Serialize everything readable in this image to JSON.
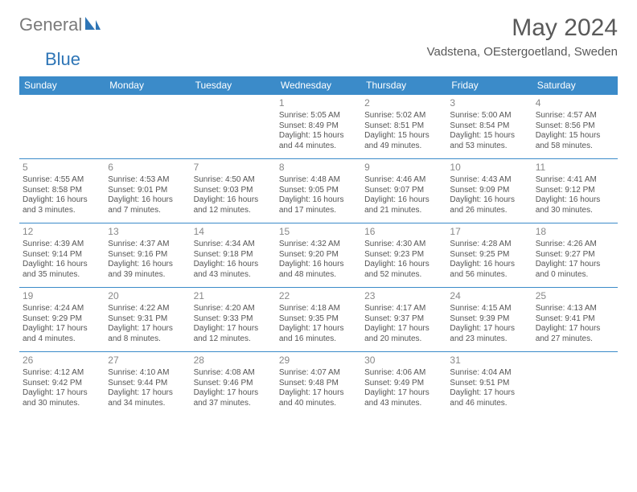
{
  "brand": {
    "part1": "General",
    "part2": "Blue"
  },
  "title": "May 2024",
  "location": "Vadstena, OEstergoetland, Sweden",
  "colors": {
    "header_bg": "#3b8bc9",
    "header_text": "#ffffff",
    "border": "#3b8bc9",
    "title_color": "#595959",
    "body_text": "#555555",
    "daynum_color": "#888888",
    "logo_gray": "#7a7a7a",
    "logo_blue": "#2e75b6"
  },
  "weekdays": [
    "Sunday",
    "Monday",
    "Tuesday",
    "Wednesday",
    "Thursday",
    "Friday",
    "Saturday"
  ],
  "weeks": [
    [
      null,
      null,
      null,
      {
        "n": "1",
        "sr": "5:05 AM",
        "ss": "8:49 PM",
        "dl": "15 hours and 44 minutes."
      },
      {
        "n": "2",
        "sr": "5:02 AM",
        "ss": "8:51 PM",
        "dl": "15 hours and 49 minutes."
      },
      {
        "n": "3",
        "sr": "5:00 AM",
        "ss": "8:54 PM",
        "dl": "15 hours and 53 minutes."
      },
      {
        "n": "4",
        "sr": "4:57 AM",
        "ss": "8:56 PM",
        "dl": "15 hours and 58 minutes."
      }
    ],
    [
      {
        "n": "5",
        "sr": "4:55 AM",
        "ss": "8:58 PM",
        "dl": "16 hours and 3 minutes."
      },
      {
        "n": "6",
        "sr": "4:53 AM",
        "ss": "9:01 PM",
        "dl": "16 hours and 7 minutes."
      },
      {
        "n": "7",
        "sr": "4:50 AM",
        "ss": "9:03 PM",
        "dl": "16 hours and 12 minutes."
      },
      {
        "n": "8",
        "sr": "4:48 AM",
        "ss": "9:05 PM",
        "dl": "16 hours and 17 minutes."
      },
      {
        "n": "9",
        "sr": "4:46 AM",
        "ss": "9:07 PM",
        "dl": "16 hours and 21 minutes."
      },
      {
        "n": "10",
        "sr": "4:43 AM",
        "ss": "9:09 PM",
        "dl": "16 hours and 26 minutes."
      },
      {
        "n": "11",
        "sr": "4:41 AM",
        "ss": "9:12 PM",
        "dl": "16 hours and 30 minutes."
      }
    ],
    [
      {
        "n": "12",
        "sr": "4:39 AM",
        "ss": "9:14 PM",
        "dl": "16 hours and 35 minutes."
      },
      {
        "n": "13",
        "sr": "4:37 AM",
        "ss": "9:16 PM",
        "dl": "16 hours and 39 minutes."
      },
      {
        "n": "14",
        "sr": "4:34 AM",
        "ss": "9:18 PM",
        "dl": "16 hours and 43 minutes."
      },
      {
        "n": "15",
        "sr": "4:32 AM",
        "ss": "9:20 PM",
        "dl": "16 hours and 48 minutes."
      },
      {
        "n": "16",
        "sr": "4:30 AM",
        "ss": "9:23 PM",
        "dl": "16 hours and 52 minutes."
      },
      {
        "n": "17",
        "sr": "4:28 AM",
        "ss": "9:25 PM",
        "dl": "16 hours and 56 minutes."
      },
      {
        "n": "18",
        "sr": "4:26 AM",
        "ss": "9:27 PM",
        "dl": "17 hours and 0 minutes."
      }
    ],
    [
      {
        "n": "19",
        "sr": "4:24 AM",
        "ss": "9:29 PM",
        "dl": "17 hours and 4 minutes."
      },
      {
        "n": "20",
        "sr": "4:22 AM",
        "ss": "9:31 PM",
        "dl": "17 hours and 8 minutes."
      },
      {
        "n": "21",
        "sr": "4:20 AM",
        "ss": "9:33 PM",
        "dl": "17 hours and 12 minutes."
      },
      {
        "n": "22",
        "sr": "4:18 AM",
        "ss": "9:35 PM",
        "dl": "17 hours and 16 minutes."
      },
      {
        "n": "23",
        "sr": "4:17 AM",
        "ss": "9:37 PM",
        "dl": "17 hours and 20 minutes."
      },
      {
        "n": "24",
        "sr": "4:15 AM",
        "ss": "9:39 PM",
        "dl": "17 hours and 23 minutes."
      },
      {
        "n": "25",
        "sr": "4:13 AM",
        "ss": "9:41 PM",
        "dl": "17 hours and 27 minutes."
      }
    ],
    [
      {
        "n": "26",
        "sr": "4:12 AM",
        "ss": "9:42 PM",
        "dl": "17 hours and 30 minutes."
      },
      {
        "n": "27",
        "sr": "4:10 AM",
        "ss": "9:44 PM",
        "dl": "17 hours and 34 minutes."
      },
      {
        "n": "28",
        "sr": "4:08 AM",
        "ss": "9:46 PM",
        "dl": "17 hours and 37 minutes."
      },
      {
        "n": "29",
        "sr": "4:07 AM",
        "ss": "9:48 PM",
        "dl": "17 hours and 40 minutes."
      },
      {
        "n": "30",
        "sr": "4:06 AM",
        "ss": "9:49 PM",
        "dl": "17 hours and 43 minutes."
      },
      {
        "n": "31",
        "sr": "4:04 AM",
        "ss": "9:51 PM",
        "dl": "17 hours and 46 minutes."
      },
      null
    ]
  ],
  "labels": {
    "sunrise": "Sunrise:",
    "sunset": "Sunset:",
    "daylight": "Daylight:"
  }
}
